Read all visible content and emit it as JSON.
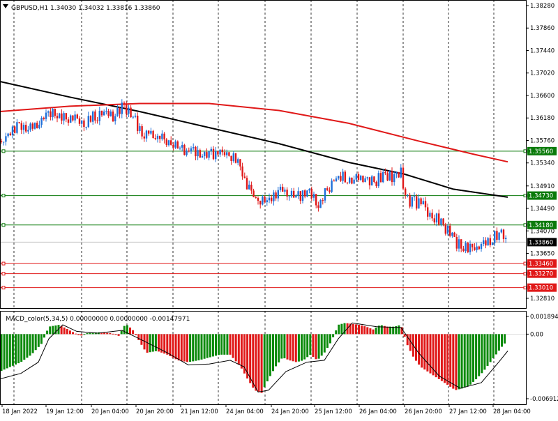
{
  "colors": {
    "background": "#ffffff",
    "frame": "#000000",
    "grid": "#000000",
    "bull_candle": "#1e6fd9",
    "bear_candle": "#e01818",
    "ma_black": "#000000",
    "ma_red": "#e01818",
    "level_green": "#0a7a0a",
    "level_red": "#e01818",
    "macd_up": "#0a8a0a",
    "macd_down": "#e01818",
    "signal": "#000000",
    "price_label_bg": "#000000",
    "price_label_fg": "#ffffff",
    "current_price_line": "#c0c0c0"
  },
  "header": {
    "chart_title": "GBPUSD,H1  1.34030 1.34032 1.33816 1.33860",
    "collapse_icon": "triangle-down-icon"
  },
  "indicator": {
    "title": "MACD_color(5,34,5) 0.00000000 0.00000000 -0.00147971"
  },
  "price_axis": {
    "ticks": [
      "1.38280",
      "1.37860",
      "1.37440",
      "1.37020",
      "1.36600",
      "1.36180",
      "1.35760",
      "1.35340",
      "1.34910",
      "1.34490",
      "1.34070",
      "1.33650",
      "1.32810"
    ],
    "current": "1.33860"
  },
  "macd_axis": {
    "ticks": [
      "0.0018942",
      "0.00",
      "-0.006912"
    ]
  },
  "time_axis": {
    "labels": [
      "18 Jan 2022",
      "19 Jan 12:00",
      "20 Jan 04:00",
      "20 Jan 20:00",
      "21 Jan 12:00",
      "24 Jan 04:00",
      "24 Jan 20:00",
      "25 Jan 12:00",
      "26 Jan 04:00",
      "26 Jan 20:00",
      "27 Jan 12:00",
      "28 Jan 04:00"
    ]
  },
  "levels": [
    {
      "price": 1.3556,
      "label": "1.35560",
      "color": "green"
    },
    {
      "price": 1.3473,
      "label": "1.34730",
      "color": "green"
    },
    {
      "price": 1.3418,
      "label": "1.34180",
      "color": "green"
    },
    {
      "price": 1.3346,
      "label": "1.33460",
      "color": "red"
    },
    {
      "price": 1.3327,
      "label": "1.33270",
      "color": "red"
    },
    {
      "price": 1.3301,
      "label": "1.33010",
      "color": "red"
    }
  ],
  "chart_data": {
    "type": "candlestick",
    "symbol": "GBPUSD",
    "timeframe": "H1",
    "ohlc_last": {
      "open": 1.3403,
      "high": 1.34032,
      "low": 1.33816,
      "close": 1.3386
    },
    "ylim": [
      1.3281,
      1.3828
    ],
    "close_path": [
      [
        0,
        1.3575
      ],
      [
        12,
        1.3596
      ],
      [
        30,
        1.3609
      ],
      [
        45,
        1.3608
      ],
      [
        60,
        1.3618
      ],
      [
        75,
        1.364
      ],
      [
        90,
        1.3628
      ],
      [
        105,
        1.3625
      ],
      [
        120,
        1.3615
      ],
      [
        135,
        1.3628
      ],
      [
        150,
        1.3632
      ],
      [
        165,
        1.3628
      ],
      [
        178,
        1.365
      ],
      [
        192,
        1.362
      ],
      [
        205,
        1.3598
      ],
      [
        220,
        1.3595
      ],
      [
        235,
        1.3582
      ],
      [
        250,
        1.357
      ],
      [
        265,
        1.3563
      ],
      [
        280,
        1.356
      ],
      [
        295,
        1.3555
      ],
      [
        310,
        1.3557
      ],
      [
        325,
        1.3557
      ],
      [
        335,
        1.3552
      ],
      [
        345,
        1.353
      ],
      [
        355,
        1.3495
      ],
      [
        365,
        1.3475
      ],
      [
        375,
        1.3465
      ],
      [
        385,
        1.347
      ],
      [
        395,
        1.3485
      ],
      [
        405,
        1.349
      ],
      [
        415,
        1.3483
      ],
      [
        425,
        1.3478
      ],
      [
        435,
        1.348
      ],
      [
        445,
        1.3485
      ],
      [
        455,
        1.3462
      ],
      [
        465,
        1.348
      ],
      [
        475,
        1.35
      ],
      [
        485,
        1.3515
      ],
      [
        495,
        1.3513
      ],
      [
        505,
        1.3508
      ],
      [
        515,
        1.351
      ],
      [
        525,
        1.3507
      ],
      [
        535,
        1.3505
      ],
      [
        545,
        1.3512
      ],
      [
        555,
        1.3515
      ],
      [
        565,
        1.351
      ],
      [
        575,
        1.3522
      ],
      [
        583,
        1.347
      ],
      [
        593,
        1.3468
      ],
      [
        603,
        1.3465
      ],
      [
        613,
        1.345
      ],
      [
        623,
        1.3438
      ],
      [
        633,
        1.3425
      ],
      [
        640,
        1.3418
      ],
      [
        650,
        1.3395
      ],
      [
        660,
        1.3385
      ],
      [
        670,
        1.3377
      ],
      [
        680,
        1.338
      ],
      [
        690,
        1.3382
      ],
      [
        700,
        1.3395
      ],
      [
        710,
        1.3405
      ],
      [
        718,
        1.341
      ],
      [
        724,
        1.3402
      ],
      [
        728,
        1.3386
      ]
    ],
    "series": [
      {
        "kind": "ma",
        "color": "black",
        "points": [
          [
            0,
            1.3686
          ],
          [
            100,
            1.3657
          ],
          [
            200,
            1.363
          ],
          [
            300,
            1.36
          ],
          [
            400,
            1.357
          ],
          [
            500,
            1.3535
          ],
          [
            580,
            1.3513
          ],
          [
            650,
            1.3485
          ],
          [
            728,
            1.347
          ]
        ]
      },
      {
        "kind": "ma",
        "color": "red",
        "points": [
          [
            0,
            1.363
          ],
          [
            100,
            1.364
          ],
          [
            200,
            1.3645
          ],
          [
            300,
            1.3645
          ],
          [
            400,
            1.3632
          ],
          [
            500,
            1.3608
          ],
          [
            600,
            1.3575
          ],
          [
            680,
            1.355
          ],
          [
            728,
            1.3536
          ]
        ]
      }
    ],
    "macd": {
      "ylim": [
        -0.006912,
        0.0018942
      ],
      "histogram": [
        [
          0,
          -0.004
        ],
        [
          15,
          -0.0035
        ],
        [
          30,
          -0.003
        ],
        [
          45,
          -0.0022
        ],
        [
          60,
          -0.001
        ],
        [
          70,
          0.0008
        ],
        [
          85,
          0.001
        ],
        [
          100,
          0.0004
        ],
        [
          115,
          -0.0002
        ],
        [
          125,
          0.0001
        ],
        [
          140,
          0.0002
        ],
        [
          160,
          0.0001
        ],
        [
          170,
          -0.0002
        ],
        [
          180,
          0.0011
        ],
        [
          190,
          0.0005
        ],
        [
          200,
          -0.0008
        ],
        [
          210,
          -0.002
        ],
        [
          225,
          -0.0018
        ],
        [
          240,
          -0.0022
        ],
        [
          255,
          -0.0028
        ],
        [
          270,
          -0.003
        ],
        [
          285,
          -0.0028
        ],
        [
          300,
          -0.0025
        ],
        [
          315,
          -0.0022
        ],
        [
          330,
          -0.0022
        ],
        [
          345,
          -0.0035
        ],
        [
          355,
          -0.0048
        ],
        [
          365,
          -0.006
        ],
        [
          375,
          -0.0063
        ],
        [
          385,
          -0.0048
        ],
        [
          395,
          -0.0035
        ],
        [
          405,
          -0.0025
        ],
        [
          415,
          -0.0028
        ],
        [
          425,
          -0.003
        ],
        [
          435,
          -0.0028
        ],
        [
          445,
          -0.0022
        ],
        [
          455,
          -0.0028
        ],
        [
          465,
          -0.002
        ],
        [
          475,
          -0.0008
        ],
        [
          485,
          0.001
        ],
        [
          495,
          0.0012
        ],
        [
          505,
          0.0011
        ],
        [
          515,
          0.001
        ],
        [
          525,
          0.0008
        ],
        [
          535,
          0.0005
        ],
        [
          545,
          0.001
        ],
        [
          555,
          0.0008
        ],
        [
          565,
          0.0008
        ],
        [
          575,
          0.001
        ],
        [
          583,
          -0.001
        ],
        [
          593,
          -0.0025
        ],
        [
          603,
          -0.0035
        ],
        [
          613,
          -0.004
        ],
        [
          623,
          -0.0045
        ],
        [
          633,
          -0.005
        ],
        [
          643,
          -0.0055
        ],
        [
          653,
          -0.006
        ],
        [
          663,
          -0.0058
        ],
        [
          673,
          -0.0055
        ],
        [
          683,
          -0.0048
        ],
        [
          693,
          -0.004
        ],
        [
          703,
          -0.003
        ],
        [
          713,
          -0.002
        ],
        [
          723,
          -0.001
        ]
      ],
      "signal_line": [
        [
          0,
          -0.0048
        ],
        [
          30,
          -0.0042
        ],
        [
          55,
          -0.003
        ],
        [
          70,
          -0.0005
        ],
        [
          90,
          0.001
        ],
        [
          110,
          0.0003
        ],
        [
          140,
          0.0001
        ],
        [
          175,
          0.0004
        ],
        [
          200,
          -0.0005
        ],
        [
          240,
          -0.002
        ],
        [
          270,
          -0.0033
        ],
        [
          300,
          -0.0032
        ],
        [
          330,
          -0.0028
        ],
        [
          350,
          -0.0035
        ],
        [
          370,
          -0.0062
        ],
        [
          385,
          -0.006
        ],
        [
          410,
          -0.004
        ],
        [
          440,
          -0.003
        ],
        [
          465,
          -0.0028
        ],
        [
          485,
          -0.0005
        ],
        [
          505,
          0.0012
        ],
        [
          540,
          0.0008
        ],
        [
          575,
          0.0007
        ],
        [
          600,
          -0.002
        ],
        [
          630,
          -0.0045
        ],
        [
          660,
          -0.0058
        ],
        [
          690,
          -0.0052
        ],
        [
          715,
          -0.003
        ],
        [
          728,
          -0.0018
        ]
      ]
    }
  }
}
